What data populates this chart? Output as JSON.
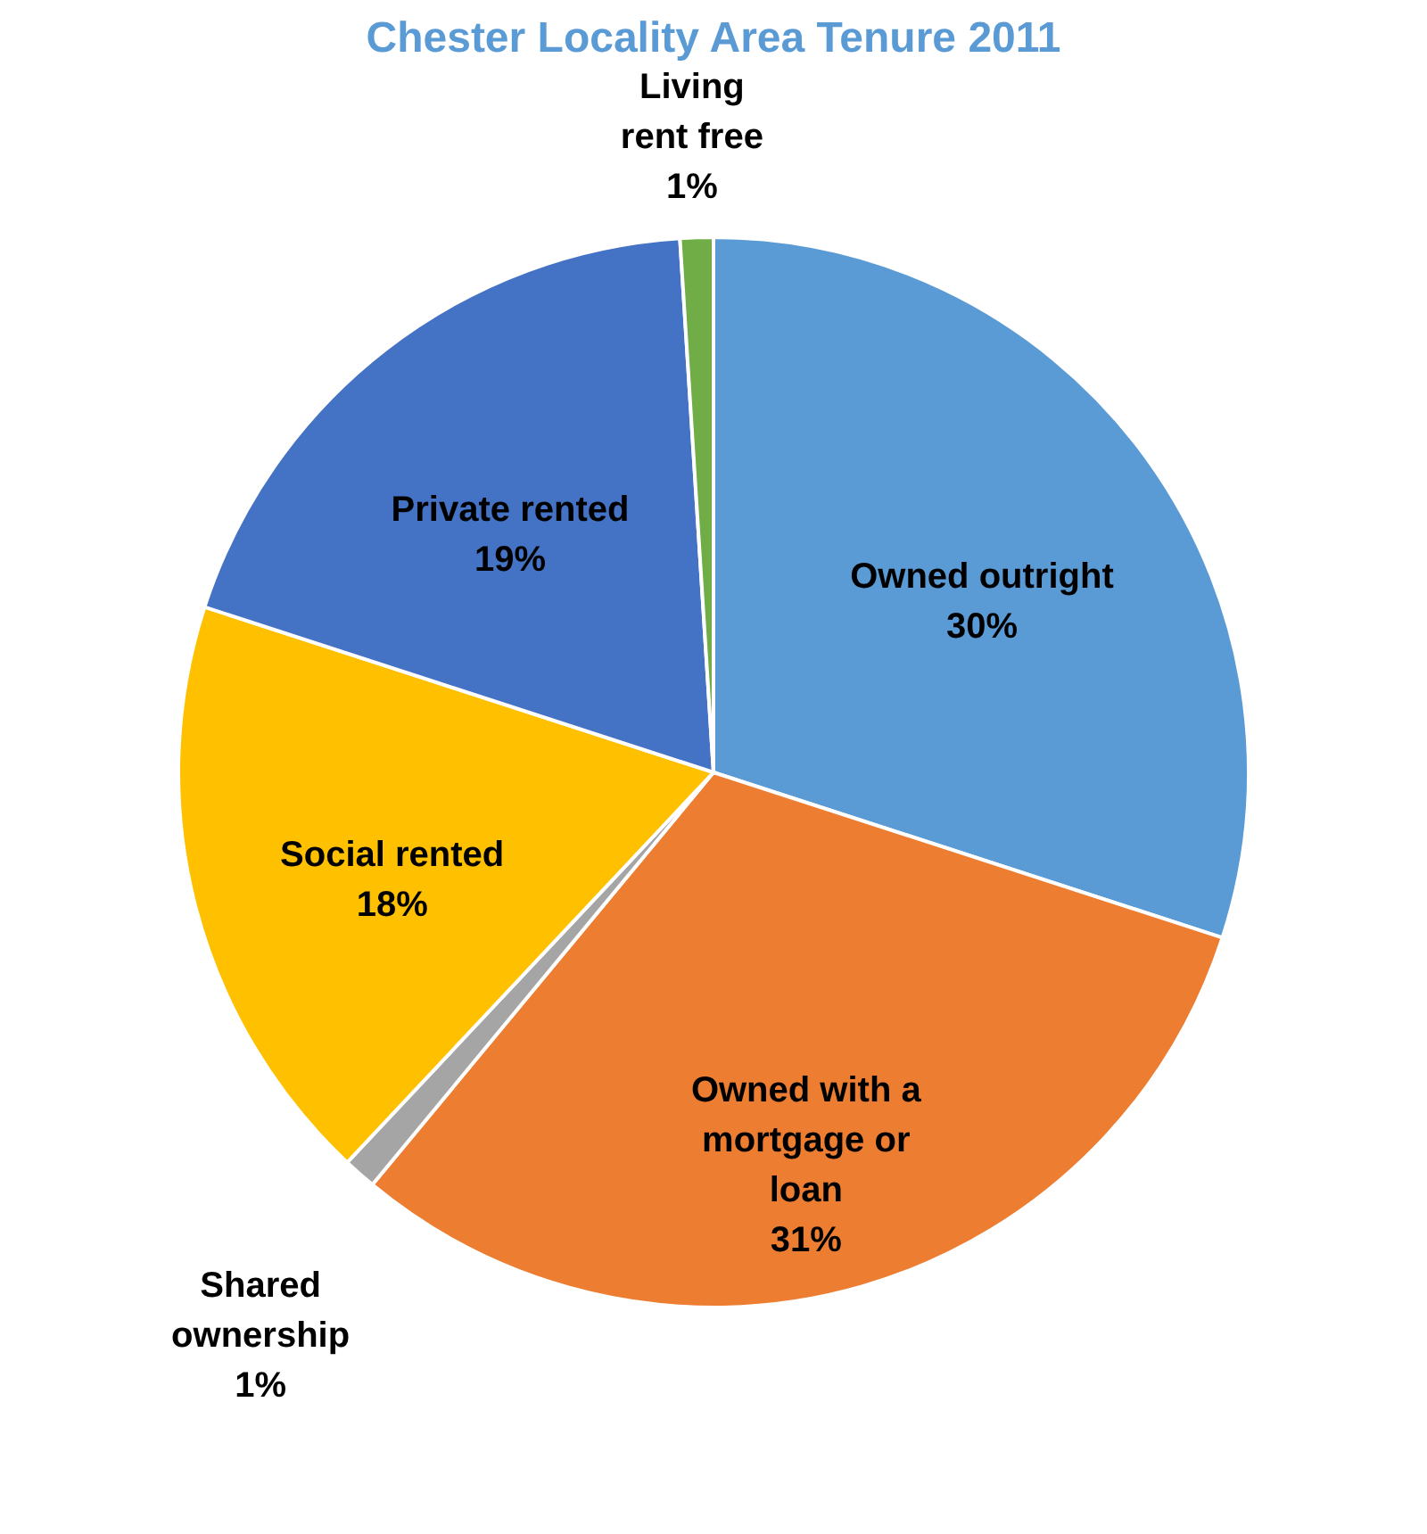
{
  "chart_data": {
    "type": "pie",
    "title": "Chester Locality Area Tenure 2011",
    "categories": [
      "Owned outright",
      "Owned with a mortgage or loan",
      "Shared ownership",
      "Social rented",
      "Private rented",
      "Living rent free"
    ],
    "values": [
      30,
      31,
      1,
      18,
      19,
      1
    ],
    "value_labels": [
      "30%",
      "31%",
      "1%",
      "18%",
      "19%",
      "1%"
    ],
    "colors": [
      "#5b9bd5",
      "#ed7d31",
      "#a5a5a5",
      "#ffc000",
      "#4472c4",
      "#70ad47"
    ],
    "legend": false
  }
}
